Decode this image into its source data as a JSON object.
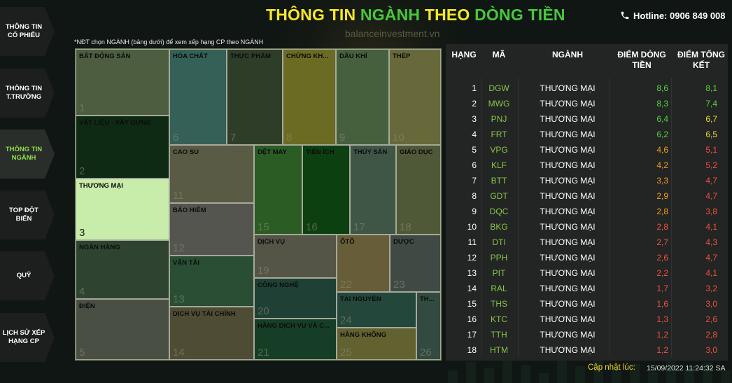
{
  "header": {
    "title_part1": "THÔNG TIN",
    "title_part2": "NGÀNH",
    "title_part3": "THEO",
    "title_part4": "DÒNG TIỀN",
    "hotline": "Hotline: 0906 849 008",
    "watermark": "balanceinvestment.vn",
    "colors": {
      "yellow": "#f5e62a",
      "green": "#46c83a"
    }
  },
  "sidebar": {
    "items": [
      {
        "label": "THÔNG TIN CỔ PHIẾU",
        "active": false
      },
      {
        "label": "THÔNG TIN T.TRƯỜNG",
        "active": false
      },
      {
        "label": "THÔNG TIN NGÀNH",
        "active": true
      },
      {
        "label": "TOP ĐỘT BIẾN",
        "active": false
      },
      {
        "label": "QUỸ",
        "active": false
      },
      {
        "label": "LỊCH SỬ XẾP HẠNG CP",
        "active": false
      }
    ]
  },
  "note": "*NĐT chọn NGÀNH (bảng dưới) để xem xếp hạng CP theo NGÀNH",
  "treemap": {
    "cells": [
      {
        "name": "BẤT ĐỘNG SẢN",
        "num": "1",
        "color": "#4c5d40"
      },
      {
        "name": "VẬT LIỆU - XÂY DỰNG",
        "num": "2",
        "color": "#0f2a14"
      },
      {
        "name": "THƯƠNG MẠI",
        "num": "3",
        "color": "#c8edaa",
        "selected": true
      },
      {
        "name": "NGÂN HÀNG",
        "num": "4",
        "color": "#2e4430"
      },
      {
        "name": "ĐIỆN",
        "num": "5",
        "color": "#4a4f44"
      },
      {
        "name": "HÓA CHẤT",
        "num": "6",
        "color": "#356058"
      },
      {
        "name": "THỰC PHẨM",
        "num": "7",
        "color": "#2d3d28"
      },
      {
        "name": "CHỨNG KH...",
        "num": "8",
        "color": "#6b6b24"
      },
      {
        "name": "DẦU KHÍ",
        "num": "9",
        "color": "#46603e"
      },
      {
        "name": "THÉP",
        "num": "10",
        "color": "#67693a"
      },
      {
        "name": "CAO SU",
        "num": "11",
        "color": "#5a5b44"
      },
      {
        "name": "BẢO HIỂM",
        "num": "12",
        "color": "#555550"
      },
      {
        "name": "VẬN TẢI",
        "num": "13",
        "color": "#294e34"
      },
      {
        "name": "DỊCH VỤ TÀI CHÍNH",
        "num": "14",
        "color": "#4f4c35"
      },
      {
        "name": "DỆT MAY",
        "num": "15",
        "color": "#2a5c23"
      },
      {
        "name": "TIỆN ÍCH",
        "num": "16",
        "color": "#0d4010"
      },
      {
        "name": "THỦY SẢN",
        "num": "17",
        "color": "#3f5647"
      },
      {
        "name": "GIÁO DỤC",
        "num": "18",
        "color": "#4f5938"
      },
      {
        "name": "DỊCH VỤ",
        "num": "19",
        "color": "#545447"
      },
      {
        "name": "ÔTÔ",
        "num": "22",
        "color": "#675d38"
      },
      {
        "name": "DƯỢC",
        "num": "23",
        "color": "#404a44"
      },
      {
        "name": "CÔNG NGHỆ",
        "num": "20",
        "color": "#1f4034"
      },
      {
        "name": "HÀNG DỊCH VỤ VÀ C...",
        "num": "21",
        "color": "#163e26"
      },
      {
        "name": "TÀI NGUYÊN",
        "num": "24",
        "color": "#23473a"
      },
      {
        "name": "HÀNG KHÔNG",
        "num": "25",
        "color": "#626130"
      },
      {
        "name": "TH...",
        "num": "26",
        "color": "#324a40"
      }
    ]
  },
  "table": {
    "headers": {
      "rank": "HẠNG",
      "ma": "MÃ",
      "nganh": "NGÀNH",
      "dong_tien": "ĐIỂM DÒNG TIỀN",
      "tong_ket": "ĐIỂM TỔNG KẾT"
    },
    "rows": [
      {
        "rank": "1",
        "ma": "DGW",
        "nganh": "THƯƠNG MẠI",
        "dong_tien": "8,6",
        "tong_ket": "8,1",
        "dt_color": "g",
        "tk_color": "g"
      },
      {
        "rank": "2",
        "ma": "MWG",
        "nganh": "THƯƠNG MẠI",
        "dong_tien": "8,3",
        "tong_ket": "7,4",
        "dt_color": "g",
        "tk_color": "g"
      },
      {
        "rank": "3",
        "ma": "PNJ",
        "nganh": "THƯƠNG MẠI",
        "dong_tien": "6,4",
        "tong_ket": "6,7",
        "dt_color": "g",
        "tk_color": "y"
      },
      {
        "rank": "4",
        "ma": "FRT",
        "nganh": "THƯƠNG MẠI",
        "dong_tien": "6,2",
        "tong_ket": "6,5",
        "dt_color": "g",
        "tk_color": "y"
      },
      {
        "rank": "5",
        "ma": "VPG",
        "nganh": "THƯƠNG MẠI",
        "dong_tien": "4,6",
        "tong_ket": "5,1",
        "dt_color": "o",
        "tk_color": "r"
      },
      {
        "rank": "6",
        "ma": "KLF",
        "nganh": "THƯƠNG MẠI",
        "dong_tien": "4,2",
        "tong_ket": "5,2",
        "dt_color": "o",
        "tk_color": "r"
      },
      {
        "rank": "7",
        "ma": "BTT",
        "nganh": "THƯƠNG MẠI",
        "dong_tien": "3,3",
        "tong_ket": "4,7",
        "dt_color": "o",
        "tk_color": "r"
      },
      {
        "rank": "8",
        "ma": "GDT",
        "nganh": "THƯƠNG MẠI",
        "dong_tien": "2,9",
        "tong_ket": "4,7",
        "dt_color": "o",
        "tk_color": "r"
      },
      {
        "rank": "9",
        "ma": "DQC",
        "nganh": "THƯƠNG MẠI",
        "dong_tien": "2,8",
        "tong_ket": "3,8",
        "dt_color": "o",
        "tk_color": "r"
      },
      {
        "rank": "10",
        "ma": "BKG",
        "nganh": "THƯƠNG MẠI",
        "dong_tien": "2,8",
        "tong_ket": "4,1",
        "dt_color": "r",
        "tk_color": "r"
      },
      {
        "rank": "11",
        "ma": "DTI",
        "nganh": "THƯƠNG MẠI",
        "dong_tien": "2,7",
        "tong_ket": "4,3",
        "dt_color": "r",
        "tk_color": "r"
      },
      {
        "rank": "12",
        "ma": "PPH",
        "nganh": "THƯƠNG MẠI",
        "dong_tien": "2,6",
        "tong_ket": "4,7",
        "dt_color": "r",
        "tk_color": "r"
      },
      {
        "rank": "13",
        "ma": "PIT",
        "nganh": "THƯƠNG MẠI",
        "dong_tien": "2,2",
        "tong_ket": "4,1",
        "dt_color": "r",
        "tk_color": "r"
      },
      {
        "rank": "14",
        "ma": "RAL",
        "nganh": "THƯƠNG MẠI",
        "dong_tien": "1,7",
        "tong_ket": "3,2",
        "dt_color": "r",
        "tk_color": "r"
      },
      {
        "rank": "15",
        "ma": "THS",
        "nganh": "THƯƠNG MẠI",
        "dong_tien": "1,6",
        "tong_ket": "3,0",
        "dt_color": "r",
        "tk_color": "r"
      },
      {
        "rank": "16",
        "ma": "KTC",
        "nganh": "THƯƠNG MẠI",
        "dong_tien": "1,3",
        "tong_ket": "2,6",
        "dt_color": "r",
        "tk_color": "r"
      },
      {
        "rank": "17",
        "ma": "TTH",
        "nganh": "THƯƠNG MẠI",
        "dong_tien": "1,2",
        "tong_ket": "2,8",
        "dt_color": "r",
        "tk_color": "r"
      },
      {
        "rank": "18",
        "ma": "HTM",
        "nganh": "THƯƠNG MẠI",
        "dong_tien": "1,2",
        "tong_ket": "3,0",
        "dt_color": "r",
        "tk_color": "r"
      }
    ]
  },
  "footer": {
    "label": "Cập nhật lúc:",
    "value": "15/09/2022 11:24:32 SA"
  }
}
